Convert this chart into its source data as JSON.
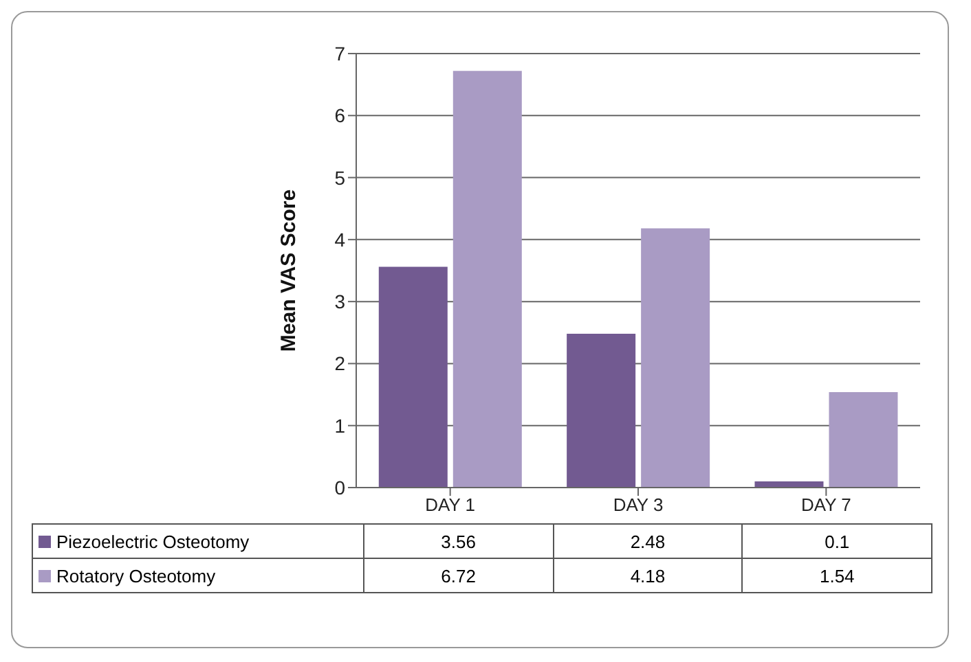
{
  "chart_data": {
    "type": "bar",
    "ylabel": "Mean VAS Score",
    "categories": [
      "DAY 1",
      "DAY 3",
      "DAY 7"
    ],
    "series": [
      {
        "name": "Piezoelectric Osteotomy",
        "color": "#725a91",
        "values": [
          3.56,
          2.48,
          0.1
        ]
      },
      {
        "name": "Rotatory Osteotomy",
        "color": "#a99bc4",
        "values": [
          6.72,
          4.18,
          1.54
        ]
      }
    ],
    "ylim": [
      0,
      7
    ],
    "yticks": [
      0,
      1,
      2,
      3,
      4,
      5,
      6,
      7
    ],
    "grid": "y",
    "legend": "bottom",
    "data_labels": true
  }
}
